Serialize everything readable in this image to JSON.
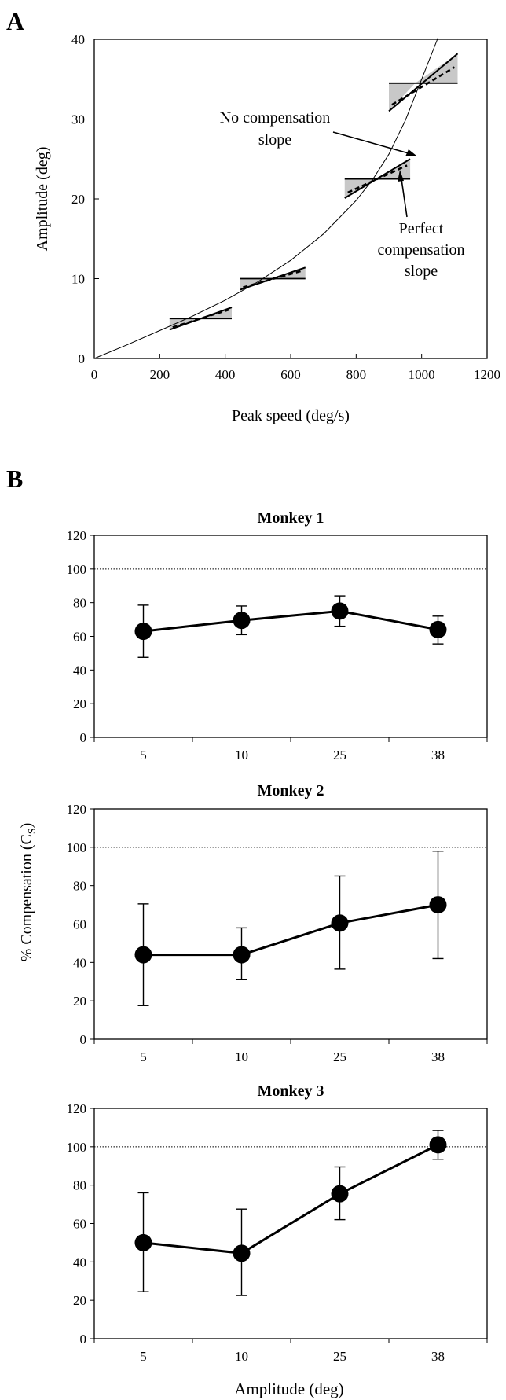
{
  "panel_labels": {
    "a": "A",
    "b": "B"
  },
  "chart_data": [
    {
      "id": "A",
      "type": "line",
      "xlabel": "Peak speed (deg/s)",
      "ylabel": "Amplitude (deg)",
      "xlim": [
        0,
        1200
      ],
      "ylim": [
        0,
        40
      ],
      "xticks": [
        0,
        200,
        400,
        600,
        800,
        1000,
        1200
      ],
      "yticks": [
        0,
        10,
        20,
        30,
        40
      ],
      "curve": {
        "x": [
          0,
          100,
          200,
          300,
          400,
          500,
          600,
          700,
          800,
          850,
          900,
          950,
          1000,
          1050
        ],
        "y": [
          0,
          1.7,
          3.5,
          5.3,
          7.3,
          9.6,
          12.3,
          15.6,
          19.8,
          22.4,
          25.6,
          29.8,
          35.0,
          41.5
        ]
      },
      "slope_markers": [
        {
          "x_center": 325,
          "amplitude": 5,
          "half_width": 95,
          "x_left": 230,
          "x_right": 420,
          "y_left": 3.6,
          "y_right": 6.4,
          "y_dashed_left": 3.9,
          "y_dashed_right": 6.1
        },
        {
          "x_center": 545,
          "amplitude": 10,
          "half_width": 100,
          "x_left": 445,
          "x_right": 645,
          "y_left": 8.6,
          "y_right": 11.4,
          "y_dashed_left": 8.9,
          "y_dashed_right": 11.0
        },
        {
          "x_center": 865,
          "amplitude": 22.5,
          "half_width": 100,
          "x_left": 765,
          "x_right": 965,
          "y_left": 20.1,
          "y_right": 25.0,
          "y_dashed_left": 20.8,
          "y_dashed_right": 24.2
        },
        {
          "x_center": 980,
          "amplitude": 34.5,
          "half_width": 115,
          "x_left": 900,
          "x_right": 1110,
          "y_left": 31.0,
          "y_right": 38.2,
          "y_dashed_left": 31.8,
          "y_dashed_right": 36.5
        }
      ],
      "annotations": [
        {
          "lines": [
            "No compensation",
            "slope"
          ]
        },
        {
          "lines": [
            "Perfect",
            "compensation",
            "slope"
          ]
        }
      ]
    },
    {
      "id": "B1",
      "type": "line",
      "title": "Monkey 1",
      "categories": [
        "5",
        "10",
        "25",
        "38"
      ],
      "values": [
        63,
        69.5,
        75,
        64
      ],
      "err_low": [
        47.5,
        61,
        66,
        55.5
      ],
      "err_high": [
        78.5,
        78,
        84,
        72
      ],
      "ylim": [
        0,
        120
      ],
      "yticks": [
        0,
        20,
        40,
        60,
        80,
        100,
        120
      ],
      "reference": 100
    },
    {
      "id": "B2",
      "type": "line",
      "title": "Monkey 2",
      "categories": [
        "5",
        "10",
        "25",
        "38"
      ],
      "values": [
        44,
        44,
        60.5,
        70
      ],
      "err_low": [
        17.5,
        31,
        36.5,
        42
      ],
      "err_high": [
        70.5,
        58,
        85,
        98
      ],
      "ylim": [
        0,
        120
      ],
      "yticks": [
        0,
        20,
        40,
        60,
        80,
        100,
        120
      ],
      "reference": 100
    },
    {
      "id": "B3",
      "type": "line",
      "title": "Monkey 3",
      "categories": [
        "5",
        "10",
        "25",
        "38"
      ],
      "values": [
        50,
        44.5,
        75.5,
        101
      ],
      "err_low": [
        24.5,
        22.5,
        62,
        93.5
      ],
      "err_high": [
        76,
        67.5,
        89.5,
        108.5
      ],
      "ylim": [
        0,
        120
      ],
      "yticks": [
        0,
        20,
        40,
        60,
        80,
        100,
        120
      ],
      "reference": 100
    }
  ],
  "shared_labels": {
    "ylabel_main": "% Compensation (C",
    "ylabel_sub": "S",
    "ylabel_close": ")",
    "xlabel": "Amplitude  (deg)"
  }
}
